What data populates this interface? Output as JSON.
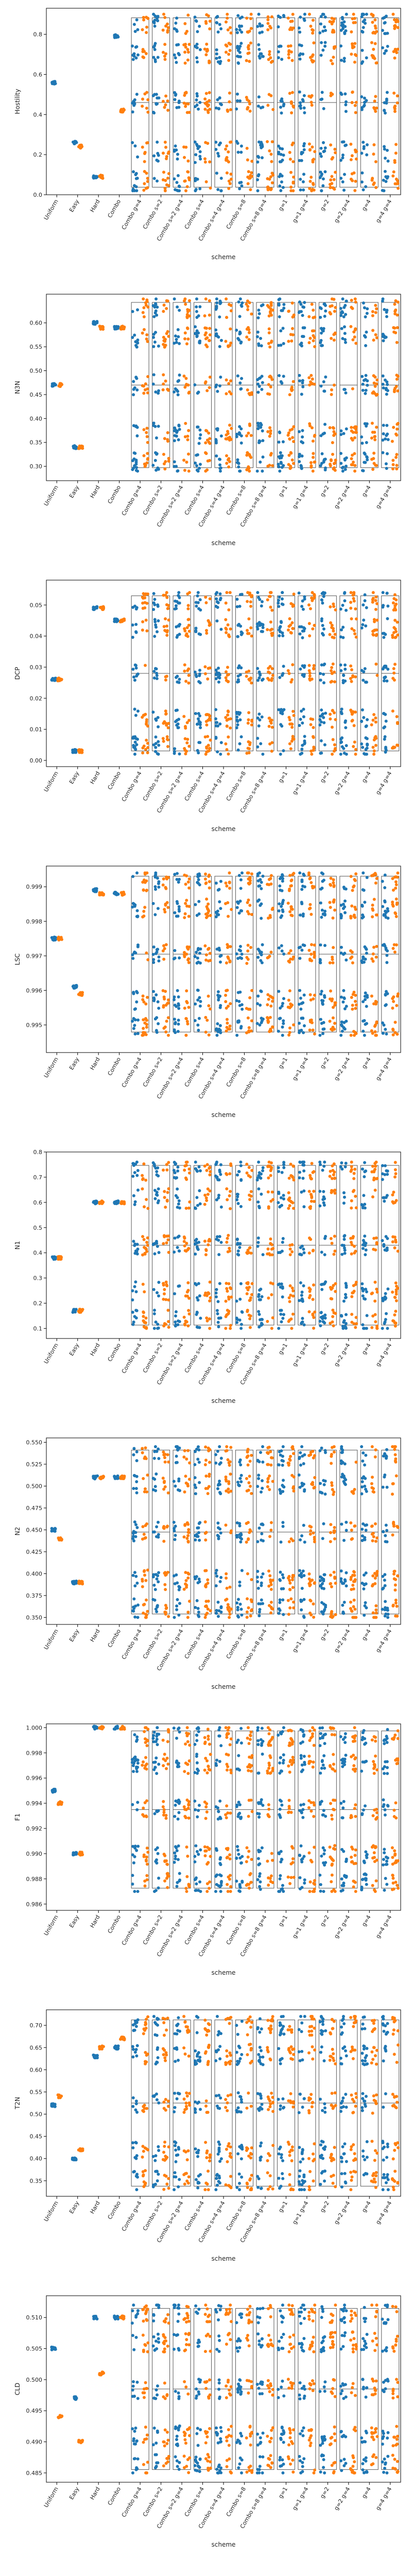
{
  "figure": {
    "colors": {
      "blue": "#1f77b4",
      "orange": "#ff7f0e",
      "box": "#555555",
      "axis": "#000000"
    }
  },
  "schemes": [
    "Uniform",
    "Easy",
    "Hard",
    "Combo",
    "Combo g=4",
    "Combo s=2",
    "Combo s=2 g=4",
    "Combo s=4",
    "Combo s=4 g=4",
    "Combo s=8",
    "Combo s=8 g=4",
    "g=1",
    "g=1 g=4",
    "g=2",
    "g=2 g=4",
    "g=4",
    "g=4 g=4"
  ],
  "chart_data": [
    {
      "type": "scatter",
      "ylabel": "Hostility",
      "xlabel": "scheme",
      "ylim": [
        0.0,
        0.93
      ],
      "yticks": [
        0.0,
        0.2,
        0.4,
        0.6,
        0.8
      ],
      "tick_labels": [
        "0.0",
        "0.2",
        "0.4",
        "0.6",
        "0.8"
      ],
      "fixed": [
        [
          0.56,
          null
        ],
        [
          0.26,
          0.24
        ],
        [
          0.09,
          0.09
        ],
        [
          0.79,
          0.42
        ]
      ],
      "range": [
        0.02,
        0.9
      ]
    },
    {
      "type": "scatter",
      "ylabel": "N3N",
      "xlabel": "scheme",
      "ylim": [
        0.27,
        0.66
      ],
      "yticks": [
        0.3,
        0.35,
        0.4,
        0.45,
        0.5,
        0.55,
        0.6
      ],
      "tick_labels": [
        "0.30",
        "0.35",
        "0.40",
        "0.45",
        "0.50",
        "0.55",
        "0.60"
      ],
      "fixed": [
        [
          0.47,
          0.47
        ],
        [
          0.34,
          0.34
        ],
        [
          0.6,
          0.59
        ],
        [
          0.59,
          0.59
        ]
      ],
      "range": [
        0.29,
        0.65
      ]
    },
    {
      "type": "scatter",
      "ylabel": "DCP",
      "xlabel": "scheme",
      "ylim": [
        -0.002,
        0.058
      ],
      "yticks": [
        0.0,
        0.01,
        0.02,
        0.03,
        0.04,
        0.05
      ],
      "tick_labels": [
        "0.00",
        "0.01",
        "0.02",
        "0.03",
        "0.04",
        "0.05"
      ],
      "fixed": [
        [
          0.026,
          0.026
        ],
        [
          0.003,
          0.003
        ],
        [
          0.049,
          0.049
        ],
        [
          0.045,
          0.045
        ]
      ],
      "range": [
        0.002,
        0.054
      ]
    },
    {
      "type": "scatter",
      "ylabel": "LSC",
      "xlabel": "scheme",
      "ylim": [
        0.9942,
        0.9996
      ],
      "yticks": [
        0.995,
        0.996,
        0.997,
        0.998,
        0.999
      ],
      "tick_labels": [
        "0.995",
        "0.996",
        "0.997",
        "0.998",
        "0.999"
      ],
      "fixed": [
        [
          0.9975,
          0.9975
        ],
        [
          0.9961,
          0.9959
        ],
        [
          0.9989,
          0.9988
        ],
        [
          0.9988,
          0.9988
        ]
      ],
      "range": [
        0.9947,
        0.9994
      ]
    },
    {
      "type": "scatter",
      "ylabel": "N1",
      "xlabel": "scheme",
      "ylim": [
        0.06,
        0.8
      ],
      "yticks": [
        0.1,
        0.2,
        0.3,
        0.4,
        0.5,
        0.6,
        0.7,
        0.8
      ],
      "tick_labels": [
        "0.1",
        "0.2",
        "0.3",
        "0.4",
        "0.5",
        "0.6",
        "0.7",
        "0.8"
      ],
      "fixed": [
        [
          0.38,
          0.38
        ],
        [
          0.17,
          0.17
        ],
        [
          0.6,
          0.6
        ],
        [
          0.6,
          0.6
        ]
      ],
      "range": [
        0.1,
        0.76
      ]
    },
    {
      "type": "scatter",
      "ylabel": "N2",
      "xlabel": "scheme",
      "ylim": [
        0.342,
        0.555
      ],
      "yticks": [
        0.35,
        0.375,
        0.4,
        0.425,
        0.45,
        0.475,
        0.5,
        0.525,
        0.55
      ],
      "tick_labels": [
        "0.350",
        "0.375",
        "0.400",
        "0.425",
        "0.450",
        "0.475",
        "0.500",
        "0.525",
        "0.550"
      ],
      "fixed": [
        [
          0.45,
          0.44
        ],
        [
          0.39,
          0.39
        ],
        [
          0.51,
          0.51
        ],
        [
          0.51,
          0.51
        ]
      ],
      "range": [
        0.35,
        0.545
      ]
    },
    {
      "type": "scatter",
      "ylabel": "F1",
      "xlabel": "scheme",
      "ylim": [
        0.9855,
        1.0003
      ],
      "yticks": [
        0.986,
        0.988,
        0.99,
        0.992,
        0.994,
        0.996,
        0.998,
        1.0
      ],
      "tick_labels": [
        "0.986",
        "0.988",
        "0.990",
        "0.992",
        "0.994",
        "0.996",
        "0.998",
        "1.000"
      ],
      "fixed": [
        [
          0.995,
          0.994
        ],
        [
          0.99,
          0.99
        ],
        [
          1.0,
          1.0
        ],
        [
          1.0,
          1.0
        ]
      ],
      "range": [
        0.987,
        1.0
      ]
    },
    {
      "type": "scatter",
      "ylabel": "T2N",
      "xlabel": "scheme",
      "ylim": [
        0.315,
        0.735
      ],
      "yticks": [
        0.35,
        0.4,
        0.45,
        0.5,
        0.55,
        0.6,
        0.65,
        0.7
      ],
      "tick_labels": [
        "0.35",
        "0.40",
        "0.45",
        "0.50",
        "0.55",
        "0.60",
        "0.65",
        "0.70"
      ],
      "fixed": [
        [
          0.52,
          0.54
        ],
        [
          0.4,
          0.42
        ],
        [
          0.63,
          0.65
        ],
        [
          0.65,
          0.67
        ]
      ],
      "range": [
        0.33,
        0.72
      ]
    },
    {
      "type": "scatter",
      "ylabel": "CLD",
      "xlabel": "scheme",
      "ylim": [
        0.4835,
        0.5135
      ],
      "yticks": [
        0.485,
        0.49,
        0.495,
        0.5,
        0.505,
        0.51
      ],
      "tick_labels": [
        "0.485",
        "0.490",
        "0.495",
        "0.500",
        "0.505",
        "0.510"
      ],
      "fixed": [
        [
          0.505,
          0.494
        ],
        [
          0.497,
          0.49
        ],
        [
          0.51,
          0.501
        ],
        [
          0.51,
          0.51
        ]
      ],
      "range": [
        0.485,
        0.512
      ]
    }
  ]
}
